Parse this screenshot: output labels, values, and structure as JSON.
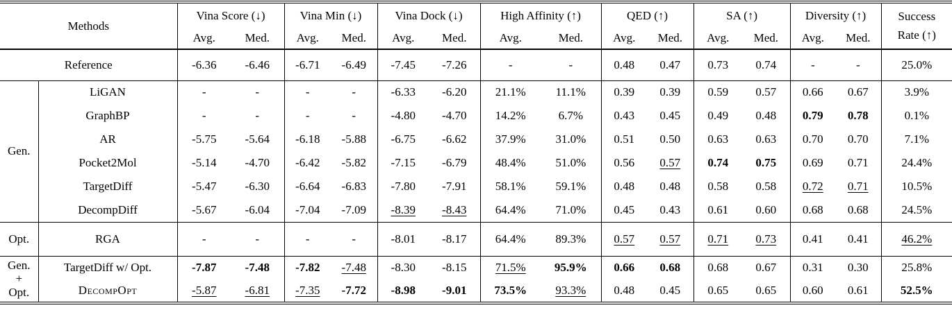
{
  "table": {
    "header": {
      "methods": "Methods",
      "groups": [
        {
          "label": "Vina Score (↓)",
          "sub": [
            "Avg.",
            "Med."
          ]
        },
        {
          "label": "Vina Min (↓)",
          "sub": [
            "Avg.",
            "Med."
          ]
        },
        {
          "label": "Vina Dock (↓)",
          "sub": [
            "Avg.",
            "Med."
          ]
        },
        {
          "label": "High Affinity (↑)",
          "sub": [
            "Avg.",
            "Med."
          ]
        },
        {
          "label": "QED (↑)",
          "sub": [
            "Avg.",
            "Med."
          ]
        },
        {
          "label": "SA (↑)",
          "sub": [
            "Avg.",
            "Med."
          ]
        },
        {
          "label": "Diversity (↑)",
          "sub": [
            "Avg.",
            "Med."
          ]
        }
      ],
      "success": [
        "Success",
        "Rate (↑)"
      ]
    },
    "sections": [
      {
        "group_lines": [],
        "rows": [
          {
            "method": "Reference",
            "values": [
              "-6.36",
              "-6.46",
              "-6.71",
              "-6.49",
              "-7.45",
              "-7.26",
              "-",
              "-",
              "0.48",
              "0.47",
              "0.73",
              "0.74",
              "-",
              "-",
              "25.0%"
            ],
            "styles": [
              "",
              "",
              "",
              "",
              "",
              "",
              "",
              "",
              "",
              "",
              "",
              "",
              "",
              "",
              ""
            ]
          }
        ]
      },
      {
        "group_lines": [
          "Gen."
        ],
        "rows": [
          {
            "method": "LiGAN",
            "values": [
              "-",
              "-",
              "-",
              "-",
              "-6.33",
              "-6.20",
              "21.1%",
              "11.1%",
              "0.39",
              "0.39",
              "0.59",
              "0.57",
              "0.66",
              "0.67",
              "3.9%"
            ],
            "styles": [
              "",
              "",
              "",
              "",
              "",
              "",
              "",
              "",
              "",
              "",
              "",
              "",
              "",
              "",
              ""
            ]
          },
          {
            "method": "GraphBP",
            "values": [
              "-",
              "-",
              "-",
              "-",
              "-4.80",
              "-4.70",
              "14.2%",
              "6.7%",
              "0.43",
              "0.45",
              "0.49",
              "0.48",
              "0.79",
              "0.78",
              "0.1%"
            ],
            "styles": [
              "",
              "",
              "",
              "",
              "",
              "",
              "",
              "",
              "",
              "",
              "",
              "",
              "b",
              "b",
              ""
            ]
          },
          {
            "method": "AR",
            "values": [
              "-5.75",
              "-5.64",
              "-6.18",
              "-5.88",
              "-6.75",
              "-6.62",
              "37.9%",
              "31.0%",
              "0.51",
              "0.50",
              "0.63",
              "0.63",
              "0.70",
              "0.70",
              "7.1%"
            ],
            "styles": [
              "",
              "",
              "",
              "",
              "",
              "",
              "",
              "",
              "",
              "",
              "",
              "",
              "",
              "",
              ""
            ]
          },
          {
            "method": "Pocket2Mol",
            "values": [
              "-5.14",
              "-4.70",
              "-6.42",
              "-5.82",
              "-7.15",
              "-6.79",
              "48.4%",
              "51.0%",
              "0.56",
              "0.57",
              "0.74",
              "0.75",
              "0.69",
              "0.71",
              "24.4%"
            ],
            "styles": [
              "",
              "",
              "",
              "",
              "",
              "",
              "",
              "",
              "",
              "u",
              "b",
              "b",
              "",
              "",
              ""
            ]
          },
          {
            "method": "TargetDiff",
            "values": [
              "-5.47",
              "-6.30",
              "-6.64",
              "-6.83",
              "-7.80",
              "-7.91",
              "58.1%",
              "59.1%",
              "0.48",
              "0.48",
              "0.58",
              "0.58",
              "0.72",
              "0.71",
              "10.5%"
            ],
            "styles": [
              "",
              "",
              "",
              "",
              "",
              "",
              "",
              "",
              "",
              "",
              "",
              "",
              "u",
              "u",
              ""
            ]
          },
          {
            "method": "DecompDiff",
            "values": [
              "-5.67",
              "-6.04",
              "-7.04",
              "-7.09",
              "-8.39",
              "-8.43",
              "64.4%",
              "71.0%",
              "0.45",
              "0.43",
              "0.61",
              "0.60",
              "0.68",
              "0.68",
              "24.5%"
            ],
            "styles": [
              "",
              "",
              "",
              "",
              "u",
              "u",
              "",
              "",
              "",
              "",
              "",
              "",
              "",
              "",
              ""
            ]
          }
        ]
      },
      {
        "group_lines": [
          "Opt."
        ],
        "rows": [
          {
            "method": "RGA",
            "values": [
              "-",
              "-",
              "-",
              "-",
              "-8.01",
              "-8.17",
              "64.4%",
              "89.3%",
              "0.57",
              "0.57",
              "0.71",
              "0.73",
              "0.41",
              "0.41",
              "46.2%"
            ],
            "styles": [
              "",
              "",
              "",
              "",
              "",
              "",
              "",
              "",
              "u",
              "u",
              "u",
              "u",
              "",
              "",
              "u"
            ]
          }
        ]
      },
      {
        "group_lines": [
          "Gen.",
          "+",
          "Opt."
        ],
        "rows": [
          {
            "method": "TargetDiff w/ Opt.",
            "values": [
              "-7.87",
              "-7.48",
              "-7.82",
              "-7.48",
              "-8.30",
              "-8.15",
              "71.5%",
              "95.9%",
              "0.66",
              "0.68",
              "0.68",
              "0.67",
              "0.31",
              "0.30",
              "25.8%"
            ],
            "styles": [
              "b",
              "b",
              "b",
              "u",
              "",
              "",
              "u",
              "b",
              "b",
              "b",
              "",
              "",
              "",
              "",
              ""
            ]
          },
          {
            "method": "DecompOpt",
            "smallcaps": true,
            "values": [
              "-5.87",
              "-6.81",
              "-7.35",
              "-7.72",
              "-8.98",
              "-9.01",
              "73.5%",
              "93.3%",
              "0.48",
              "0.45",
              "0.65",
              "0.65",
              "0.60",
              "0.61",
              "52.5%"
            ],
            "styles": [
              "u",
              "u",
              "u",
              "b",
              "b",
              "b",
              "b",
              "u",
              "",
              "",
              "",
              "",
              "",
              "",
              "b"
            ]
          }
        ]
      }
    ]
  }
}
